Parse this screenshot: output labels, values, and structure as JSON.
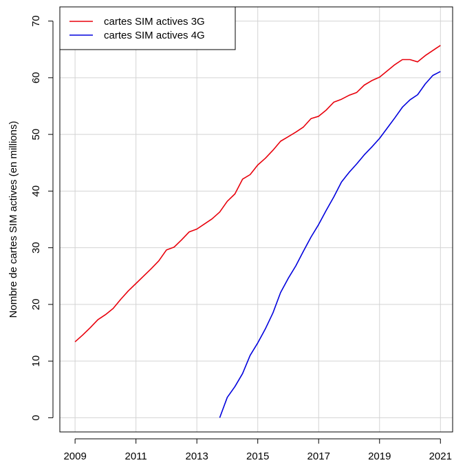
{
  "chart_data": {
    "type": "line",
    "title": "",
    "xlabel": "",
    "ylabel": "Nombre de cartes SIM actives (en millions)",
    "xlim": [
      2008.5,
      2021.4
    ],
    "ylim": [
      -2.5,
      72.5
    ],
    "xticks": [
      2009,
      2011,
      2013,
      2015,
      2017,
      2019,
      2021
    ],
    "xtick_labels": [
      "2009",
      "2011",
      "2013",
      "2015",
      "2017",
      "2019",
      "2021"
    ],
    "yticks": [
      0,
      10,
      20,
      30,
      40,
      50,
      60,
      70
    ],
    "ytick_labels": [
      "0",
      "10",
      "20",
      "30",
      "40",
      "50",
      "60",
      "70"
    ],
    "grid": true,
    "legend_position": "top-left",
    "series": [
      {
        "name": "cartes SIM actives 3G",
        "color": "#e8000b",
        "points": [
          [
            2009.0,
            13.4
          ],
          [
            2009.25,
            14.6
          ],
          [
            2009.5,
            15.9
          ],
          [
            2009.75,
            17.3
          ],
          [
            2010.0,
            18.2
          ],
          [
            2010.25,
            19.3
          ],
          [
            2010.5,
            20.9
          ],
          [
            2010.75,
            22.4
          ],
          [
            2011.0,
            23.7
          ],
          [
            2011.25,
            25.0
          ],
          [
            2011.5,
            26.3
          ],
          [
            2011.75,
            27.7
          ],
          [
            2012.0,
            29.6
          ],
          [
            2012.25,
            30.1
          ],
          [
            2012.5,
            31.4
          ],
          [
            2012.75,
            32.8
          ],
          [
            2013.0,
            33.3
          ],
          [
            2013.25,
            34.2
          ],
          [
            2013.5,
            35.1
          ],
          [
            2013.75,
            36.3
          ],
          [
            2014.0,
            38.2
          ],
          [
            2014.25,
            39.5
          ],
          [
            2014.5,
            42.1
          ],
          [
            2014.75,
            42.9
          ],
          [
            2015.0,
            44.6
          ],
          [
            2015.25,
            45.8
          ],
          [
            2015.5,
            47.2
          ],
          [
            2015.75,
            48.8
          ],
          [
            2016.0,
            49.6
          ],
          [
            2016.25,
            50.4
          ],
          [
            2016.5,
            51.3
          ],
          [
            2016.75,
            52.8
          ],
          [
            2017.0,
            53.2
          ],
          [
            2017.25,
            54.3
          ],
          [
            2017.5,
            55.7
          ],
          [
            2017.75,
            56.2
          ],
          [
            2018.0,
            56.9
          ],
          [
            2018.25,
            57.4
          ],
          [
            2018.5,
            58.7
          ],
          [
            2018.75,
            59.5
          ],
          [
            2019.0,
            60.1
          ],
          [
            2019.25,
            61.2
          ],
          [
            2019.5,
            62.3
          ],
          [
            2019.75,
            63.2
          ],
          [
            2020.0,
            63.2
          ],
          [
            2020.25,
            62.8
          ],
          [
            2020.5,
            63.9
          ],
          [
            2020.75,
            64.8
          ],
          [
            2021.0,
            65.7
          ]
        ]
      },
      {
        "name": "cartes SIM actives 4G",
        "color": "#0000dd",
        "points": [
          [
            2013.75,
            0.0
          ],
          [
            2014.0,
            3.6
          ],
          [
            2014.25,
            5.5
          ],
          [
            2014.5,
            7.8
          ],
          [
            2014.75,
            11.0
          ],
          [
            2015.0,
            13.2
          ],
          [
            2015.25,
            15.7
          ],
          [
            2015.5,
            18.5
          ],
          [
            2015.75,
            22.1
          ],
          [
            2016.0,
            24.6
          ],
          [
            2016.25,
            26.8
          ],
          [
            2016.5,
            29.4
          ],
          [
            2016.75,
            31.9
          ],
          [
            2017.0,
            34.1
          ],
          [
            2017.25,
            36.6
          ],
          [
            2017.5,
            39.0
          ],
          [
            2017.75,
            41.6
          ],
          [
            2018.0,
            43.3
          ],
          [
            2018.25,
            44.8
          ],
          [
            2018.5,
            46.4
          ],
          [
            2018.75,
            47.8
          ],
          [
            2019.0,
            49.3
          ],
          [
            2019.25,
            51.1
          ],
          [
            2019.5,
            52.9
          ],
          [
            2019.75,
            54.8
          ],
          [
            2020.0,
            56.1
          ],
          [
            2020.25,
            57.0
          ],
          [
            2020.5,
            58.9
          ],
          [
            2020.75,
            60.4
          ],
          [
            2021.0,
            61.1
          ]
        ]
      }
    ]
  }
}
